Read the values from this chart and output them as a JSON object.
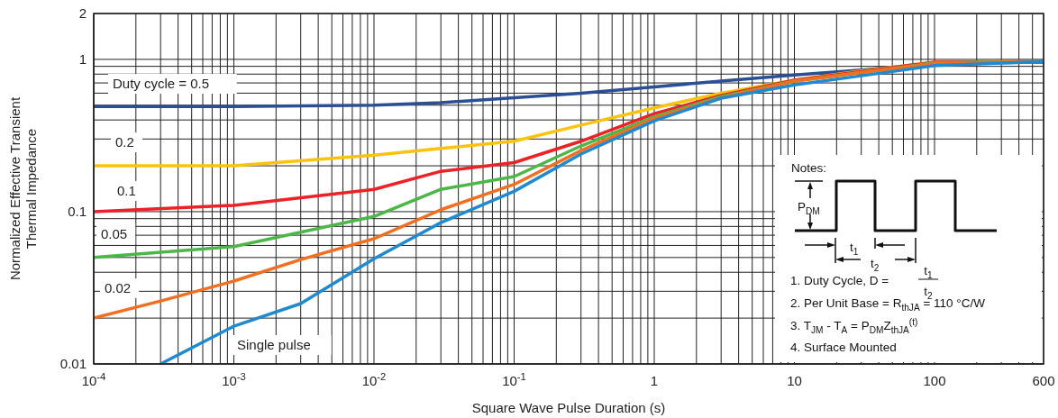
{
  "chart_data": {
    "type": "line",
    "xlabel": "Square Wave Pulse Duration (s)",
    "ylabel": "Normalized Effective Transient Thermal Impedance",
    "log": "xy",
    "grid": true,
    "xlim": [
      0.0001,
      600
    ],
    "ylim": [
      0.01,
      2
    ],
    "xticks": [
      {
        "value": 0.0001,
        "label": "10$^{-4}$"
      },
      {
        "value": 0.001,
        "label": "10$^{-3}$"
      },
      {
        "value": 0.01,
        "label": "10$^{-2}$"
      },
      {
        "value": 0.1,
        "label": "10$^{-1}$"
      },
      1,
      10,
      100,
      600
    ],
    "yticks": [
      0.01,
      0.1,
      1,
      2
    ],
    "series": [
      {
        "name": "Duty cycle = 0.5",
        "color": "#2b4f95",
        "x": [
          0.0001,
          0.001,
          0.01,
          0.03,
          0.1,
          0.3,
          1,
          3,
          10,
          30,
          100,
          600
        ],
        "values": [
          0.49,
          0.49,
          0.5,
          0.52,
          0.56,
          0.6,
          0.66,
          0.72,
          0.79,
          0.85,
          0.94,
          0.96
        ]
      },
      {
        "name": "0.2",
        "color": "#fcc30e",
        "x": [
          0.0001,
          0.001,
          0.01,
          0.03,
          0.1,
          0.3,
          1,
          3,
          10,
          30,
          100,
          600
        ],
        "values": [
          0.2,
          0.2,
          0.235,
          0.26,
          0.29,
          0.37,
          0.48,
          0.6,
          0.73,
          0.84,
          0.96,
          0.97
        ]
      },
      {
        "name": "0.1",
        "color": "#ec2227",
        "x": [
          0.0001,
          0.001,
          0.01,
          0.03,
          0.1,
          0.3,
          1,
          3,
          10,
          30,
          100,
          600
        ],
        "values": [
          0.1,
          0.11,
          0.14,
          0.184,
          0.21,
          0.29,
          0.44,
          0.58,
          0.73,
          0.83,
          0.96,
          0.97
        ]
      },
      {
        "name": "0.05",
        "color": "#4cb748",
        "x": [
          0.0001,
          0.001,
          0.01,
          0.03,
          0.1,
          0.3,
          1,
          3,
          10,
          30,
          100,
          600
        ],
        "values": [
          0.05,
          0.059,
          0.093,
          0.14,
          0.17,
          0.27,
          0.42,
          0.57,
          0.72,
          0.82,
          0.95,
          0.97
        ]
      },
      {
        "name": "0.02",
        "color": "#f26f22",
        "x": [
          0.0001,
          0.0003,
          0.001,
          0.003,
          0.01,
          0.03,
          0.1,
          0.3,
          1,
          3,
          10,
          30,
          100,
          600
        ],
        "values": [
          0.02,
          0.0259,
          0.035,
          0.0485,
          0.0664,
          0.103,
          0.151,
          0.252,
          0.41,
          0.56,
          0.72,
          0.82,
          0.94,
          0.97
        ]
      },
      {
        "name": "Single pulse",
        "color": "#1f8ad0",
        "x": [
          0.0003,
          0.001,
          0.003,
          0.01,
          0.03,
          0.1,
          0.3,
          1,
          3,
          10,
          30,
          100,
          600
        ],
        "values": [
          0.01,
          0.0177,
          0.0249,
          0.049,
          0.0847,
          0.136,
          0.239,
          0.395,
          0.556,
          0.68,
          0.78,
          0.91,
          0.97
        ]
      }
    ],
    "annotations": [
      "Notes:",
      "P$_{DM}$",
      "t$_{1}$",
      "t$_{2}$",
      "1. Duty Cycle, D =",
      "t$_{1}$",
      "t$_{2}$",
      "2. Per Unit Base = R$_{thJA}$ = 110 °C/W",
      "3. T$_{JM}$ - T$_{A}$ = P$_{DM}$Z$_{thJA}$$^{(t)}$",
      "4. Surface Mounted"
    ]
  }
}
